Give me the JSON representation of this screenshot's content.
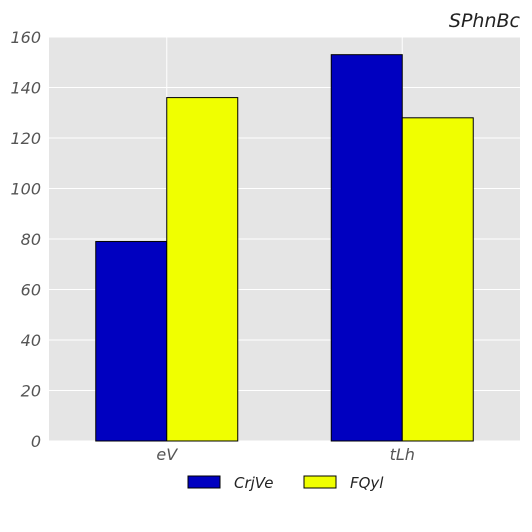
{
  "chart_data": {
    "type": "bar",
    "title": "SPhnBc",
    "categories": [
      "eV",
      "tLh"
    ],
    "series": [
      {
        "name": "CrjVe",
        "values": [
          79,
          153
        ],
        "color": "#0000c0"
      },
      {
        "name": "FQyl",
        "values": [
          136,
          128
        ],
        "color": "#f0ff00"
      }
    ],
    "ylim": [
      0,
      160
    ],
    "yticks": [
      0,
      20,
      40,
      60,
      80,
      100,
      120,
      140,
      160
    ],
    "xlabel": "",
    "ylabel": "",
    "grid": true,
    "legend": "bottom-center",
    "plot_background": "#e5e5e5",
    "grid_color": "#ffffff"
  }
}
